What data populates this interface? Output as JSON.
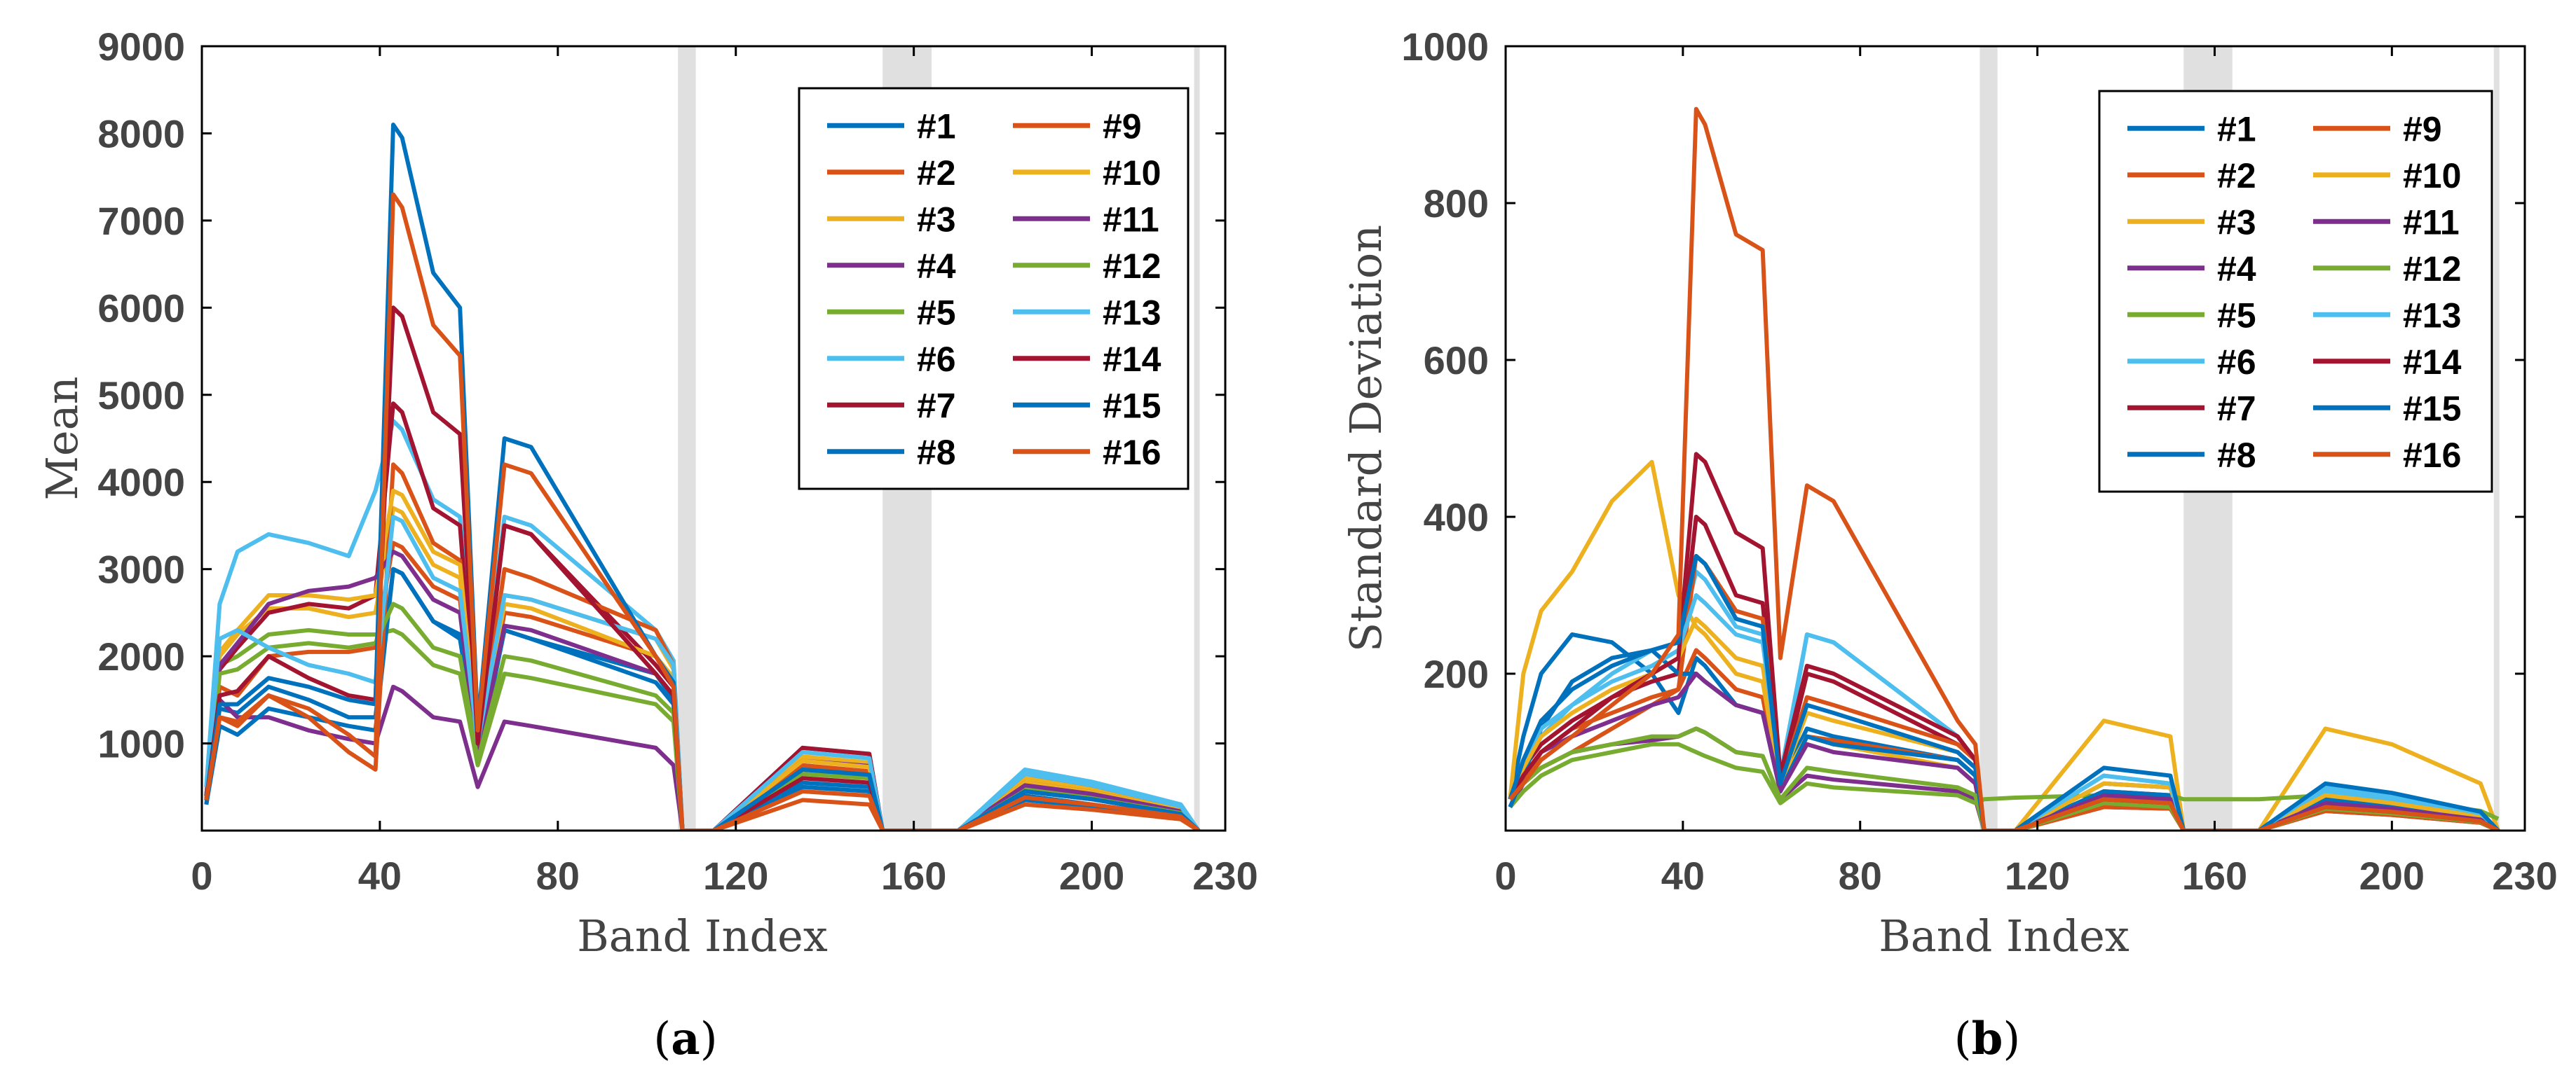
{
  "colors": [
    "#0072BD",
    "#D95319",
    "#EDB120",
    "#7E2F8E",
    "#77AC30",
    "#4DBEEE",
    "#A2142F"
  ],
  "chart_data": [
    {
      "type": "line",
      "caption": "a",
      "xlabel": "Band Index",
      "ylabel": "Mean",
      "xlim": [
        0,
        230
      ],
      "ylim": [
        0,
        9000
      ],
      "xticks": [
        0,
        40,
        80,
        120,
        160,
        200,
        230
      ],
      "yticks": [
        1000,
        2000,
        3000,
        4000,
        5000,
        6000,
        7000,
        8000,
        9000
      ],
      "absorption_bands": [
        [
          107,
          111
        ],
        [
          153,
          164
        ],
        [
          223,
          224
        ]
      ],
      "series": [
        {
          "name": "#1",
          "peak_band": 45,
          "values": [
            350,
            1400,
            1350,
            1650,
            1500,
            1300,
            1300,
            3000,
            2950,
            2400,
            2200,
            900,
            2300,
            2200,
            1800,
            1500,
            0,
            0,
            550,
            500,
            0,
            0,
            400,
            300,
            160,
            0
          ]
        },
        {
          "name": "#2",
          "peak_band": 45,
          "values": [
            380,
            1650,
            1550,
            2000,
            2050,
            2050,
            2100,
            3300,
            3250,
            2800,
            2650,
            800,
            2500,
            2450,
            2000,
            1700,
            0,
            0,
            750,
            680,
            0,
            0,
            500,
            400,
            220,
            0
          ]
        },
        {
          "name": "#3",
          "peak_band": 45,
          "values": [
            400,
            2000,
            2250,
            2550,
            2550,
            2450,
            2500,
            3700,
            3650,
            3050,
            2900,
            900,
            2700,
            2650,
            2200,
            1850,
            0,
            0,
            850,
            780,
            0,
            0,
            600,
            480,
            260,
            0
          ]
        },
        {
          "name": "#4",
          "peak_band": 45,
          "values": [
            300,
            1500,
            1300,
            1300,
            1150,
            1050,
            1000,
            1650,
            1600,
            1300,
            1250,
            500,
            1250,
            1200,
            950,
            750,
            0,
            0,
            800,
            740,
            0,
            0,
            650,
            520,
            280,
            0
          ]
        },
        {
          "name": "#5",
          "peak_band": 45,
          "values": [
            350,
            1900,
            2000,
            2250,
            2300,
            2250,
            2250,
            2300,
            2250,
            1900,
            1800,
            750,
            1800,
            1750,
            1450,
            1250,
            0,
            0,
            700,
            640,
            0,
            0,
            480,
            380,
            200,
            0
          ]
        },
        {
          "name": "#6",
          "peak_band": 45,
          "values": [
            500,
            2600,
            3200,
            3400,
            3300,
            3150,
            3900,
            4700,
            4600,
            3800,
            3600,
            1100,
            3600,
            3500,
            2300,
            1950,
            0,
            0,
            950,
            880,
            0,
            0,
            700,
            560,
            300,
            0
          ]
        },
        {
          "name": "#7",
          "peak_band": 45,
          "values": [
            400,
            1850,
            2100,
            2500,
            2600,
            2550,
            2700,
            4900,
            4800,
            3700,
            3500,
            900,
            3500,
            3400,
            1900,
            1650,
            0,
            0,
            950,
            880,
            0,
            0,
            550,
            440,
            240,
            0
          ]
        },
        {
          "name": "#8",
          "peak_band": 45,
          "values": [
            300,
            1200,
            1100,
            1400,
            1300,
            1200,
            1150,
            3000,
            2950,
            2400,
            2250,
            800,
            2300,
            2200,
            1700,
            1450,
            0,
            0,
            500,
            450,
            0,
            0,
            350,
            280,
            150,
            0
          ]
        },
        {
          "name": "#9",
          "peak_band": 45,
          "values": [
            350,
            1300,
            1200,
            1550,
            1300,
            900,
            700,
            4200,
            4100,
            3300,
            3100,
            850,
            3000,
            2900,
            2300,
            1900,
            0,
            0,
            350,
            300,
            0,
            0,
            300,
            240,
            130,
            0
          ]
        },
        {
          "name": "#10",
          "peak_band": 45,
          "values": [
            400,
            2050,
            2300,
            2700,
            2700,
            2650,
            2700,
            3900,
            3850,
            3200,
            3050,
            950,
            2600,
            2550,
            2000,
            1750,
            0,
            0,
            800,
            730,
            0,
            0,
            550,
            440,
            240,
            0
          ]
        },
        {
          "name": "#11",
          "peak_band": 45,
          "values": [
            400,
            1900,
            2150,
            2600,
            2750,
            2800,
            2900,
            3200,
            3150,
            2650,
            2500,
            850,
            2350,
            2300,
            1800,
            1550,
            0,
            0,
            700,
            640,
            0,
            0,
            520,
            420,
            220,
            0
          ]
        },
        {
          "name": "#12",
          "peak_band": 45,
          "values": [
            350,
            1800,
            1850,
            2100,
            2150,
            2100,
            2150,
            2600,
            2550,
            2100,
            2000,
            800,
            2000,
            1950,
            1550,
            1350,
            0,
            0,
            650,
            600,
            0,
            0,
            460,
            370,
            200,
            0
          ]
        },
        {
          "name": "#13",
          "peak_band": 45,
          "values": [
            500,
            2200,
            2300,
            2100,
            1900,
            1800,
            1700,
            3600,
            3550,
            2900,
            2750,
            1000,
            2700,
            2650,
            2200,
            1900,
            0,
            0,
            900,
            830,
            0,
            0,
            650,
            520,
            280,
            0
          ]
        },
        {
          "name": "#14",
          "peak_band": 45,
          "values": [
            350,
            1550,
            1600,
            2000,
            1750,
            1550,
            1500,
            6000,
            5900,
            4800,
            4550,
            1000,
            3500,
            3400,
            1800,
            1550,
            0,
            0,
            600,
            550,
            0,
            0,
            450,
            360,
            190,
            0
          ]
        },
        {
          "name": "#15",
          "peak_band": 45,
          "values": [
            350,
            1450,
            1450,
            1750,
            1650,
            1500,
            1450,
            8100,
            7950,
            6400,
            6000,
            1200,
            4500,
            4400,
            2000,
            1700,
            0,
            0,
            700,
            640,
            0,
            0,
            450,
            360,
            190,
            0
          ]
        },
        {
          "name": "#16",
          "peak_band": 45,
          "values": [
            350,
            1300,
            1250,
            1550,
            1400,
            1100,
            850,
            7300,
            7150,
            5800,
            5450,
            1150,
            4200,
            4100,
            2000,
            1650,
            0,
            0,
            450,
            400,
            0,
            0,
            380,
            300,
            160,
            0
          ]
        }
      ]
    },
    {
      "type": "line",
      "caption": "b",
      "xlabel": "Band Index",
      "ylabel": "Standard Deviation",
      "xlim": [
        0,
        230
      ],
      "ylim": [
        0,
        1000
      ],
      "xticks": [
        0,
        40,
        80,
        120,
        160,
        200,
        230
      ],
      "yticks": [
        200,
        400,
        600,
        800,
        1000
      ],
      "absorption_bands": [
        [
          107,
          111
        ],
        [
          153,
          164
        ],
        [
          223,
          224
        ]
      ],
      "series": [
        {
          "name": "#1",
          "peak_band": 45,
          "values": [
            40,
            120,
            200,
            250,
            240,
            200,
            150,
            220,
            210,
            160,
            150,
            60,
            130,
            120,
            90,
            70,
            0,
            0,
            60,
            55,
            0,
            0,
            40,
            30,
            15,
            0
          ]
        },
        {
          "name": "#2",
          "peak_band": 45,
          "values": [
            40,
            60,
            100,
            130,
            150,
            170,
            180,
            230,
            220,
            180,
            170,
            50,
            120,
            115,
            90,
            70,
            0,
            0,
            40,
            35,
            0,
            0,
            30,
            25,
            12,
            0
          ]
        },
        {
          "name": "#3",
          "peak_band": 45,
          "values": [
            40,
            200,
            280,
            330,
            420,
            470,
            300,
            260,
            250,
            200,
            190,
            60,
            120,
            110,
            80,
            60,
            0,
            0,
            140,
            120,
            0,
            0,
            130,
            110,
            60,
            0
          ]
        },
        {
          "name": "#4",
          "peak_band": 45,
          "values": [
            30,
            60,
            80,
            100,
            110,
            115,
            120,
            130,
            125,
            100,
            95,
            40,
            70,
            65,
            50,
            40,
            0,
            0,
            30,
            28,
            0,
            0,
            25,
            20,
            10,
            0
          ]
        },
        {
          "name": "#5",
          "peak_band": 45,
          "values": [
            30,
            50,
            70,
            90,
            100,
            110,
            110,
            100,
            95,
            80,
            75,
            35,
            60,
            55,
            45,
            35,
            40,
            42,
            45,
            45,
            40,
            40,
            45,
            40,
            25,
            15
          ]
        },
        {
          "name": "#6",
          "peak_band": 45,
          "values": [
            40,
            80,
            120,
            160,
            200,
            230,
            240,
            330,
            320,
            260,
            250,
            60,
            250,
            240,
            120,
            90,
            0,
            0,
            70,
            60,
            0,
            0,
            50,
            40,
            20,
            0
          ]
        },
        {
          "name": "#7",
          "peak_band": 45,
          "values": [
            40,
            80,
            110,
            140,
            170,
            190,
            200,
            400,
            390,
            300,
            290,
            60,
            200,
            190,
            110,
            90,
            0,
            0,
            50,
            45,
            0,
            0,
            40,
            30,
            15,
            0
          ]
        },
        {
          "name": "#8",
          "peak_band": 45,
          "values": [
            30,
            70,
            130,
            190,
            220,
            230,
            200,
            200,
            190,
            160,
            150,
            50,
            120,
            110,
            90,
            70,
            0,
            0,
            50,
            45,
            0,
            0,
            40,
            32,
            15,
            0
          ]
        },
        {
          "name": "#9",
          "peak_band": 45,
          "values": [
            40,
            60,
            80,
            100,
            130,
            160,
            180,
            350,
            340,
            280,
            270,
            60,
            170,
            160,
            110,
            90,
            0,
            0,
            30,
            28,
            0,
            0,
            25,
            20,
            10,
            0
          ]
        },
        {
          "name": "#10",
          "peak_band": 45,
          "values": [
            40,
            80,
            120,
            150,
            180,
            200,
            220,
            270,
            260,
            220,
            210,
            60,
            150,
            140,
            100,
            80,
            0,
            0,
            60,
            55,
            0,
            0,
            45,
            35,
            18,
            0
          ]
        },
        {
          "name": "#11",
          "peak_band": 45,
          "values": [
            40,
            70,
            100,
            120,
            140,
            160,
            170,
            200,
            190,
            160,
            150,
            50,
            110,
            100,
            80,
            60,
            0,
            0,
            45,
            40,
            0,
            0,
            35,
            28,
            14,
            0
          ]
        },
        {
          "name": "#12",
          "peak_band": 45,
          "values": [
            40,
            60,
            80,
            100,
            110,
            120,
            120,
            130,
            125,
            100,
            95,
            40,
            80,
            75,
            55,
            45,
            0,
            0,
            35,
            30,
            0,
            0,
            28,
            22,
            11,
            0
          ]
        },
        {
          "name": "#13",
          "peak_band": 45,
          "values": [
            40,
            90,
            130,
            160,
            190,
            210,
            230,
            300,
            290,
            250,
            240,
            70,
            250,
            240,
            120,
            90,
            0,
            0,
            70,
            60,
            0,
            0,
            55,
            44,
            22,
            0
          ]
        },
        {
          "name": "#14",
          "peak_band": 45,
          "values": [
            40,
            70,
            100,
            130,
            170,
            200,
            220,
            480,
            470,
            380,
            360,
            70,
            210,
            200,
            120,
            90,
            0,
            0,
            40,
            35,
            0,
            0,
            30,
            24,
            12,
            0
          ]
        },
        {
          "name": "#15",
          "peak_band": 45,
          "values": [
            40,
            90,
            140,
            180,
            210,
            230,
            240,
            350,
            340,
            270,
            260,
            60,
            160,
            150,
            100,
            80,
            0,
            0,
            80,
            70,
            0,
            0,
            60,
            48,
            24,
            0
          ]
        },
        {
          "name": "#16",
          "peak_band": 45,
          "values": [
            40,
            60,
            90,
            120,
            160,
            200,
            250,
            920,
            900,
            760,
            740,
            220,
            440,
            420,
            140,
            110,
            0,
            0,
            40,
            35,
            0,
            0,
            30,
            24,
            12,
            0
          ]
        }
      ]
    }
  ]
}
